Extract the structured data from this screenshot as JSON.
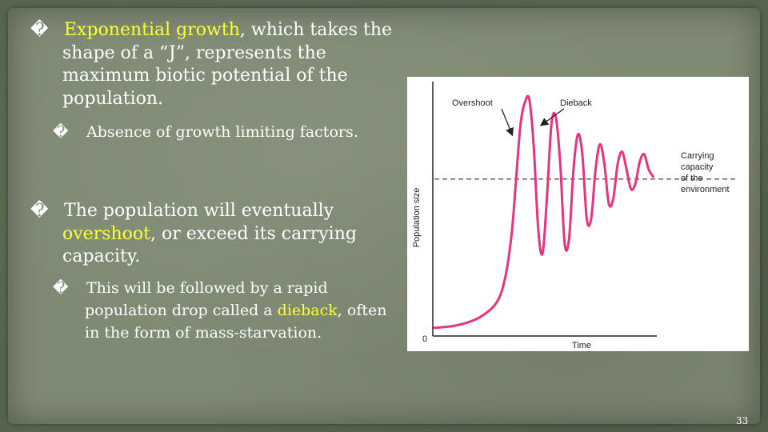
{
  "bullets": [
    {
      "marker": "�",
      "highlight": "Exponential growth",
      "text_after": ", which takes the shape of a “J”, represents the maximum biotic potential of the population.",
      "sub": {
        "marker": "�",
        "text": "Absence of growth limiting factors."
      }
    },
    {
      "marker": "�",
      "text_before": "The population will eventually ",
      "highlight": "overshoot",
      "text_after": ", or exceed its carrying capacity.",
      "sub": {
        "marker": "�",
        "text_before": "This will be followed by a rapid population drop called a ",
        "highlight": "dieback",
        "text_after": ", often in the form of mass-starvation."
      }
    }
  ],
  "colors": {
    "highlight": "#ffff33",
    "curve": "#e8337e",
    "carrying_line": "#555555"
  },
  "chart_data": {
    "type": "line",
    "xlabel": "Time",
    "ylabel": "Population size",
    "origin_label": "0",
    "annotations": {
      "overshoot": "Overshoot",
      "dieback": "Dieback",
      "carrying_capacity": [
        "Carrying",
        "capacity",
        "of the",
        "environment"
      ]
    },
    "ylim": [
      0,
      100
    ],
    "xlim": [
      0,
      100
    ],
    "carrying_capacity": 62,
    "series": [
      {
        "x": [
          0,
          10,
          20,
          28,
          32,
          35,
          37,
          39,
          41,
          43,
          45,
          47,
          49,
          51,
          53,
          55,
          57,
          59,
          61,
          63,
          65,
          67,
          69,
          71,
          73,
          75,
          77,
          79,
          81,
          83,
          85,
          87,
          89,
          91,
          93,
          95,
          97,
          99
        ],
        "values": [
          2,
          3,
          6,
          12,
          22,
          40,
          62,
          84,
          93,
          94,
          75,
          42,
          32,
          55,
          84,
          87,
          68,
          36,
          38,
          66,
          80,
          72,
          46,
          46,
          66,
          76,
          68,
          52,
          54,
          68,
          73,
          66,
          58,
          60,
          69,
          72,
          66,
          63
        ]
      }
    ]
  },
  "page_number": "33"
}
